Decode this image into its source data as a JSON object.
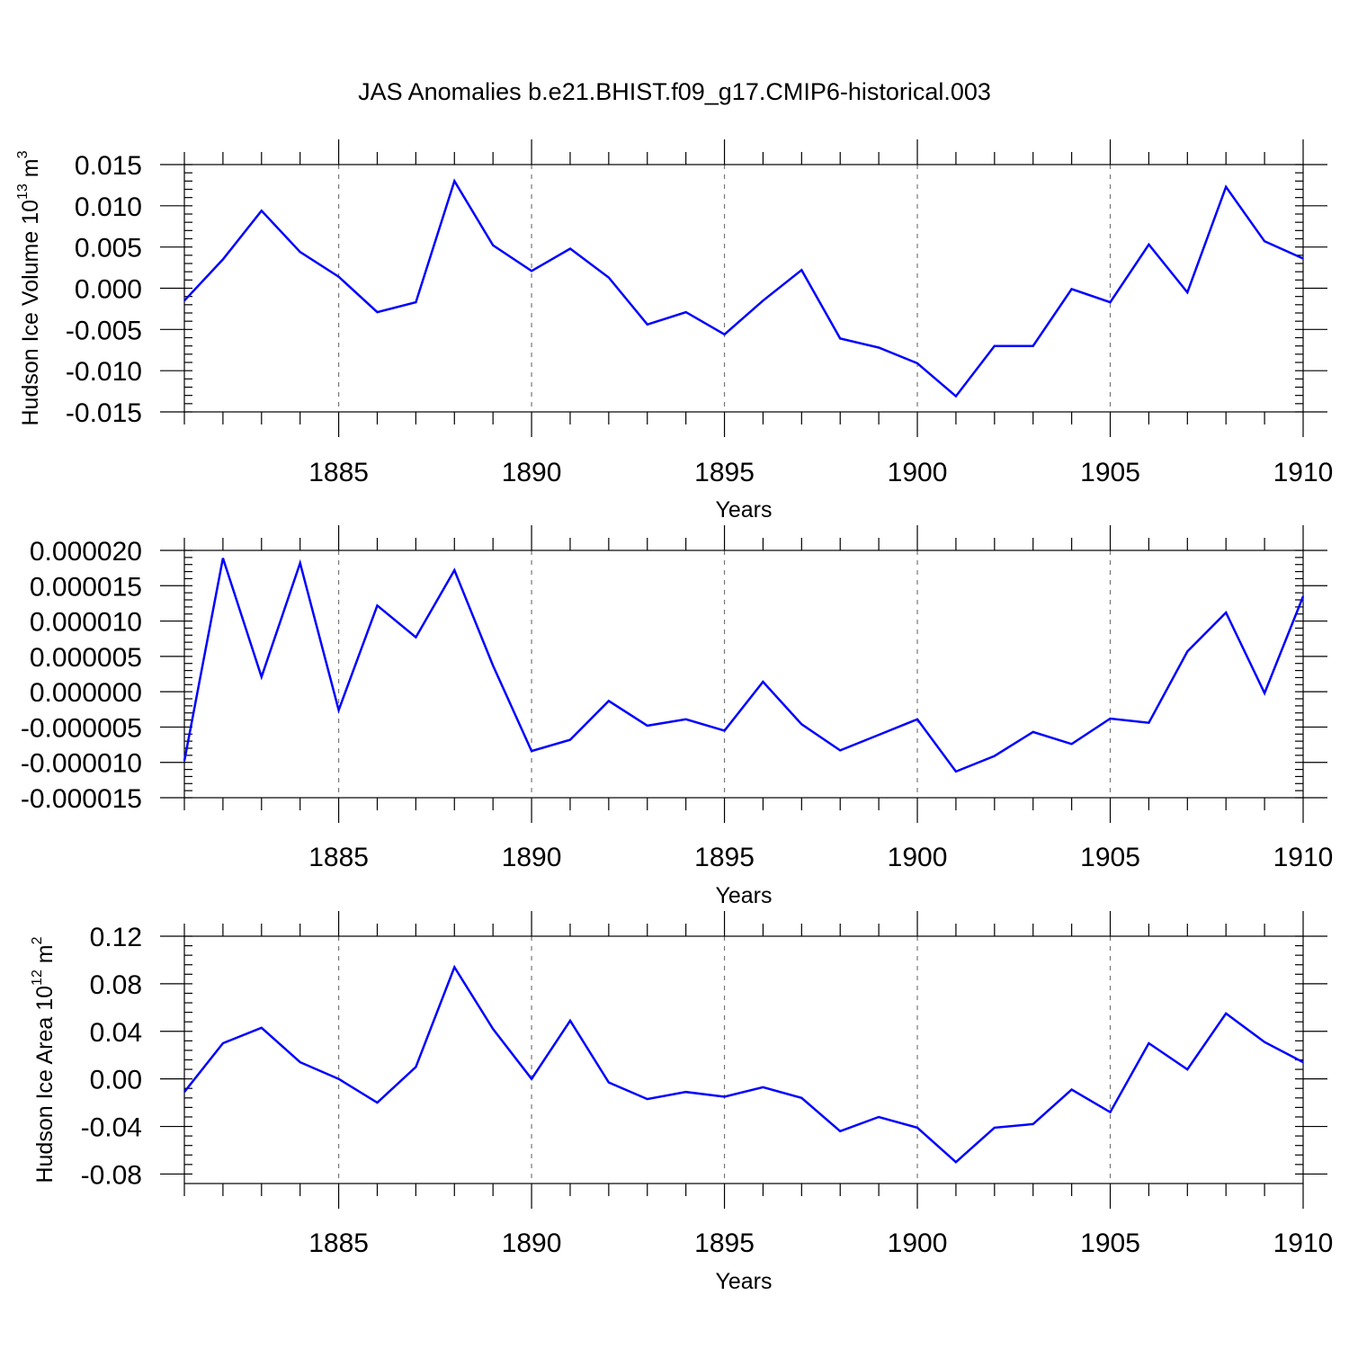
{
  "title": "JAS Anomalies b.e21.BHIST.f09_g17.CMIP6-historical.003",
  "chart_data": [
    {
      "type": "line",
      "ylabel": "Hudson Ice Volume 10",
      "ylabel_exp": "13",
      "ylabel_unit": " m",
      "ylabel_unit_exp": "3",
      "xlabel": "Years",
      "xlim": [
        1881,
        1910
      ],
      "ylim": [
        -0.015,
        0.015
      ],
      "yticks": [
        0.015,
        0.01,
        0.005,
        0.0,
        -0.005,
        -0.01,
        -0.015
      ],
      "ytick_labels": [
        "0.015",
        "0.010",
        "0.005",
        "0.000",
        "-0.005",
        "-0.010",
        "-0.015"
      ],
      "xticks": [
        1885,
        1890,
        1895,
        1900,
        1905,
        1910
      ],
      "xtick_labels": [
        "1885",
        "1890",
        "1895",
        "1900",
        "1905",
        "1910"
      ],
      "x": [
        1881,
        1882,
        1883,
        1884,
        1885,
        1886,
        1887,
        1888,
        1889,
        1890,
        1891,
        1892,
        1893,
        1894,
        1895,
        1896,
        1897,
        1898,
        1899,
        1900,
        1901,
        1902,
        1903,
        1904,
        1905,
        1906,
        1907,
        1908,
        1909,
        1910
      ],
      "values": [
        -0.0015,
        0.0035,
        0.0094,
        0.0044,
        0.0014,
        -0.0029,
        -0.0017,
        0.013,
        0.0052,
        0.0021,
        0.0048,
        0.0013,
        -0.0044,
        -0.0029,
        -0.0056,
        -0.0015,
        0.0022,
        -0.0061,
        -0.0072,
        -0.0091,
        -0.0131,
        -0.007,
        -0.007,
        -0.0001,
        -0.0017,
        0.0053,
        -0.0005,
        0.0123,
        0.0057,
        0.0036
      ]
    },
    {
      "type": "line",
      "ylabel": "",
      "xlabel": "Years",
      "xlim": [
        1881,
        1910
      ],
      "ylim": [
        -1.5e-05,
        2e-05
      ],
      "yticks": [
        2e-05,
        1.5e-05,
        1e-05,
        5e-06,
        0.0,
        -5e-06,
        -1e-05,
        -1.5e-05
      ],
      "ytick_labels": [
        "0.000020",
        "0.000015",
        "0.000010",
        "0.000005",
        "0.000000",
        "-0.000005",
        "-0.000010",
        "-0.000015"
      ],
      "xticks": [
        1885,
        1890,
        1895,
        1900,
        1905,
        1910
      ],
      "xtick_labels": [
        "1885",
        "1890",
        "1895",
        "1900",
        "1905",
        "1910"
      ],
      "x": [
        1881,
        1882,
        1883,
        1884,
        1885,
        1886,
        1887,
        1888,
        1889,
        1890,
        1891,
        1892,
        1893,
        1894,
        1895,
        1896,
        1897,
        1898,
        1899,
        1900,
        1901,
        1902,
        1903,
        1904,
        1905,
        1906,
        1907,
        1908,
        1909,
        1910
      ],
      "values": [
        -9.8e-06,
        1.89e-05,
        2.1e-06,
        1.82e-05,
        -2.6e-06,
        1.22e-05,
        7.7e-06,
        1.72e-05,
        3.7e-06,
        -8.4e-06,
        -6.8e-06,
        -1.3e-06,
        -4.8e-06,
        -3.9e-06,
        -5.5e-06,
        1.4e-06,
        -4.6e-06,
        -8.3e-06,
        -6.1e-06,
        -3.9e-06,
        -1.13e-05,
        -9.1e-06,
        -5.7e-06,
        -7.4e-06,
        -3.8e-06,
        -4.4e-06,
        5.7e-06,
        1.12e-05,
        -2e-07,
        1.35e-05
      ]
    },
    {
      "type": "line",
      "ylabel": "Hudson Ice Area 10",
      "ylabel_exp": "12",
      "ylabel_unit": " m",
      "ylabel_unit_exp": "2",
      "xlabel": "Years",
      "xlim": [
        1881,
        1910
      ],
      "ylim": [
        -0.088,
        0.12
      ],
      "yticks": [
        0.12,
        0.08,
        0.04,
        0.0,
        -0.04,
        -0.08
      ],
      "ytick_labels": [
        "0.12",
        "0.08",
        "0.04",
        "0.00",
        "-0.04",
        "-0.08"
      ],
      "xticks": [
        1885,
        1890,
        1895,
        1900,
        1905,
        1910
      ],
      "xtick_labels": [
        "1885",
        "1890",
        "1895",
        "1900",
        "1905",
        "1910"
      ],
      "x": [
        1881,
        1882,
        1883,
        1884,
        1885,
        1886,
        1887,
        1888,
        1889,
        1890,
        1891,
        1892,
        1893,
        1894,
        1895,
        1896,
        1897,
        1898,
        1899,
        1900,
        1901,
        1902,
        1903,
        1904,
        1905,
        1906,
        1907,
        1908,
        1909,
        1910
      ],
      "values": [
        -0.011,
        0.03,
        0.043,
        0.014,
        0.0,
        -0.02,
        0.01,
        0.094,
        0.042,
        0.0,
        0.049,
        -0.003,
        -0.017,
        -0.011,
        -0.015,
        -0.007,
        -0.016,
        -0.044,
        -0.032,
        -0.041,
        -0.07,
        -0.041,
        -0.038,
        -0.009,
        -0.028,
        0.03,
        0.008,
        0.055,
        0.031,
        0.014
      ]
    }
  ]
}
